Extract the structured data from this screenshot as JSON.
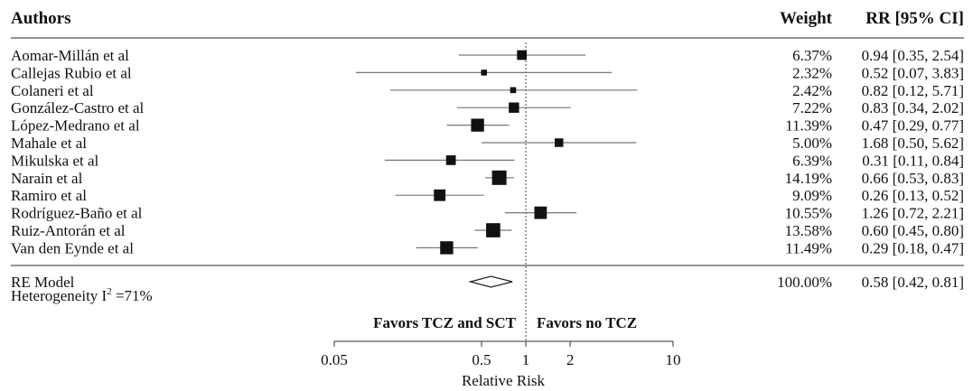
{
  "chart_data": {
    "type": "forest",
    "header": {
      "authors": "Authors",
      "weight": "Weight",
      "rr": "RR [95% CI]"
    },
    "studies": [
      {
        "author": "Aomar-Millán et al",
        "weight": "6.37%",
        "rr_text": "0.94 [0.35, 2.54]",
        "rr": 0.94,
        "lo": 0.35,
        "hi": 2.54,
        "w": 6.37
      },
      {
        "author": "Callejas Rubio et al",
        "weight": "2.32%",
        "rr_text": "0.52 [0.07, 3.83]",
        "rr": 0.52,
        "lo": 0.07,
        "hi": 3.83,
        "w": 2.32
      },
      {
        "author": "Colaneri et al",
        "weight": "2.42%",
        "rr_text": "0.82 [0.12, 5.71]",
        "rr": 0.82,
        "lo": 0.12,
        "hi": 5.71,
        "w": 2.42
      },
      {
        "author": "González-Castro et al",
        "weight": "7.22%",
        "rr_text": "0.83 [0.34, 2.02]",
        "rr": 0.83,
        "lo": 0.34,
        "hi": 2.02,
        "w": 7.22
      },
      {
        "author": "López-Medrano et al",
        "weight": "11.39%",
        "rr_text": "0.47 [0.29, 0.77]",
        "rr": 0.47,
        "lo": 0.29,
        "hi": 0.77,
        "w": 11.39
      },
      {
        "author": "Mahale et al",
        "weight": "5.00%",
        "rr_text": "1.68 [0.50, 5.62]",
        "rr": 1.68,
        "lo": 0.5,
        "hi": 5.62,
        "w": 5.0
      },
      {
        "author": "Mikulska et al",
        "weight": "6.39%",
        "rr_text": "0.31 [0.11, 0.84]",
        "rr": 0.31,
        "lo": 0.11,
        "hi": 0.84,
        "w": 6.39
      },
      {
        "author": "Narain et al",
        "weight": "14.19%",
        "rr_text": "0.66 [0.53, 0.83]",
        "rr": 0.66,
        "lo": 0.53,
        "hi": 0.83,
        "w": 14.19
      },
      {
        "author": "Ramiro et al",
        "weight": "9.09%",
        "rr_text": "0.26 [0.13, 0.52]",
        "rr": 0.26,
        "lo": 0.13,
        "hi": 0.52,
        "w": 9.09
      },
      {
        "author": "Rodríguez-Baño et al",
        "weight": "10.55%",
        "rr_text": "1.26 [0.72, 2.21]",
        "rr": 1.26,
        "lo": 0.72,
        "hi": 2.21,
        "w": 10.55
      },
      {
        "author": "Ruiz-Antorán et al",
        "weight": "13.58%",
        "rr_text": "0.60 [0.45, 0.80]",
        "rr": 0.6,
        "lo": 0.45,
        "hi": 0.8,
        "w": 13.58
      },
      {
        "author": "Van den Eynde et al",
        "weight": "11.49%",
        "rr_text": "0.29 [0.18, 0.47]",
        "rr": 0.29,
        "lo": 0.18,
        "hi": 0.47,
        "w": 11.49
      }
    ],
    "summary": {
      "label": "RE Model",
      "heterogeneity_prefix": "Heterogeneity I",
      "heterogeneity_sup": "2",
      "heterogeneity_suffix": " =71%",
      "weight": "100.00%",
      "rr_text": "0.58 [0.42, 0.81]",
      "rr": 0.58,
      "lo": 0.42,
      "hi": 0.81
    },
    "favors_left": "Favors TCZ and SCT",
    "favors_right": "Favors no TCZ",
    "x_axis": {
      "label": "Relative Risk",
      "scale": "log",
      "ticks": [
        0.05,
        0.5,
        1,
        2,
        10
      ],
      "tick_labels": [
        "0.05",
        "0.5",
        "1",
        "2",
        "10"
      ],
      "range": [
        0.05,
        10
      ],
      "reference_line": 1
    }
  }
}
